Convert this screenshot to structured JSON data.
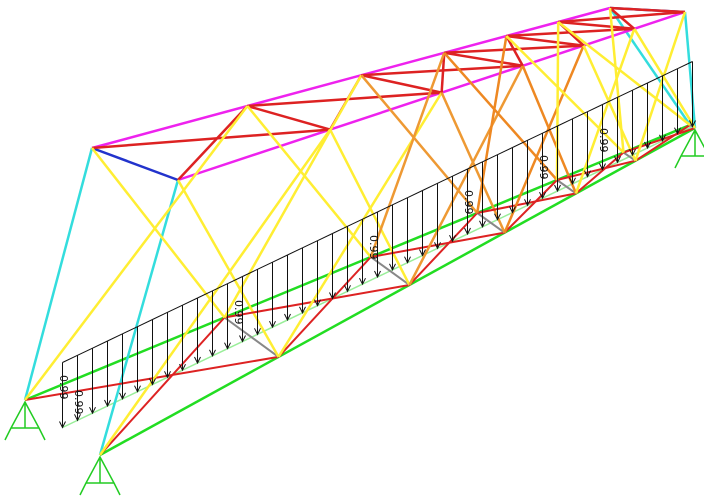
{
  "load_labels": [
    "0.99",
    "0.99",
    "0.99",
    "0.99",
    "0.99",
    "0.99",
    "0.99"
  ]
}
